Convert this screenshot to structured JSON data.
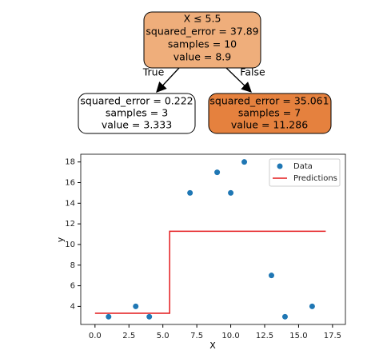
{
  "tree": {
    "nodes": [
      {
        "lines": [
          "X ≤ 5.5",
          "squared_error = 37.89",
          "samples = 10",
          "value = 8.9"
        ]
      },
      {
        "lines": [
          "squared_error = 0.222",
          "samples = 3",
          "value = 3.333"
        ]
      },
      {
        "lines": [
          "squared_error = 35.061",
          "samples = 7",
          "value = 11.286"
        ]
      }
    ],
    "edges": [
      {
        "label": "True"
      },
      {
        "label": "False"
      }
    ]
  },
  "chart_data": {
    "type": "scatter",
    "xlabel": "X",
    "ylabel": "y",
    "series": [
      {
        "name": "Data",
        "type": "scatter",
        "color": "#1f77b4",
        "x": [
          1,
          3,
          4,
          7,
          9,
          10,
          11,
          13,
          14,
          16
        ],
        "values": [
          3,
          4,
          3,
          15,
          17,
          15,
          18,
          7,
          3,
          4
        ]
      },
      {
        "name": "Predictions",
        "type": "line",
        "color": "#e41a1c",
        "x": [
          0,
          5.5,
          5.5,
          17
        ],
        "values": [
          3.333,
          3.333,
          11.286,
          11.286
        ]
      }
    ],
    "xlim": [
      -1.05,
      18.45
    ],
    "ylim": [
      2.25,
      18.75
    ],
    "xticks": [
      {
        "value": 0,
        "label": "0.0"
      },
      2.5,
      {
        "value": 5,
        "label": "5.0"
      },
      7.5,
      {
        "value": 10,
        "label": "10.0"
      },
      12.5,
      {
        "value": 15,
        "label": "15.0"
      },
      17.5
    ],
    "yticks": [
      4,
      6,
      8,
      10,
      12,
      14,
      16,
      18
    ],
    "legend": "upper-right"
  }
}
